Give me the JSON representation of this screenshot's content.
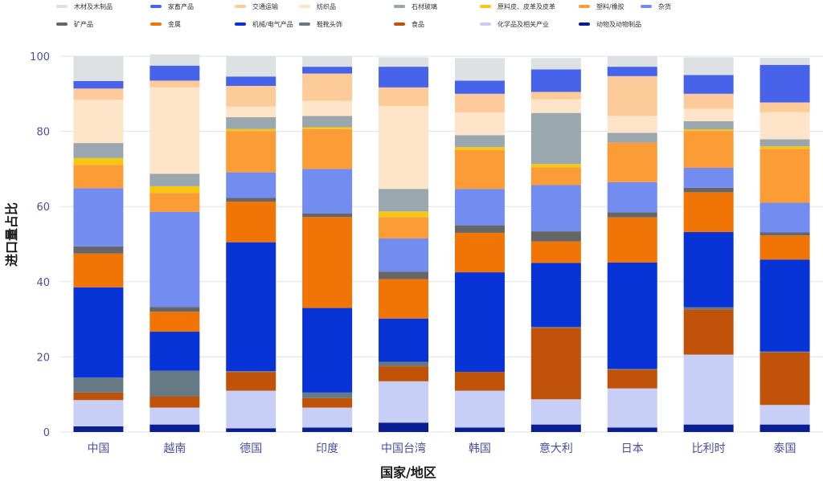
{
  "chart_data": {
    "type": "bar",
    "stacked": true,
    "xlabel": "国家/地区",
    "ylabel": "进口量占比",
    "ylim": [
      0,
      100
    ],
    "yticks": [
      0,
      20,
      40,
      60,
      80,
      100
    ],
    "grid": true,
    "legend_position": "top",
    "categories": [
      "中国",
      "越南",
      "德国",
      "印度",
      "中国台湾",
      "韩国",
      "意大利",
      "日本",
      "比利时",
      "泰国"
    ],
    "series": [
      {
        "name": "动物及动物制品",
        "color": "#0a1f8f",
        "values": [
          1.5,
          2.0,
          1.0,
          1.2,
          2.5,
          1.2,
          2.0,
          1.2,
          2.0,
          2.0
        ]
      },
      {
        "name": "化学品及相关产业",
        "color": "#c8cff7",
        "values": [
          7.0,
          4.5,
          10.0,
          5.3,
          11.0,
          9.8,
          6.7,
          10.4,
          18.6,
          5.2
        ]
      },
      {
        "name": "食品",
        "color": "#c1520a",
        "values": [
          2.0,
          3.0,
          5.0,
          2.5,
          4.0,
          5.0,
          19.0,
          5.0,
          12.0,
          14.0
        ]
      },
      {
        "name": "鞋靴头饰",
        "color": "#667a86",
        "values": [
          4.0,
          6.8,
          0.2,
          1.5,
          1.2,
          0.0,
          0.3,
          0.2,
          0.6,
          0.2
        ]
      },
      {
        "name": "机械/电气产品",
        "color": "#0833d6",
        "values": [
          24.0,
          10.4,
          34.3,
          22.5,
          11.5,
          26.5,
          17.0,
          28.3,
          20.0,
          24.5
        ]
      },
      {
        "name": "金属",
        "color": "#f07406",
        "values": [
          9.0,
          5.3,
          10.8,
          24.2,
          10.5,
          10.5,
          5.7,
          12.0,
          10.6,
          6.4
        ]
      },
      {
        "name": "矿产品",
        "color": "#666666",
        "values": [
          1.9,
          1.3,
          1.0,
          1.0,
          2.0,
          2.0,
          2.7,
          1.4,
          1.2,
          0.8
        ]
      },
      {
        "name": "杂货",
        "color": "#738cef",
        "values": [
          15.5,
          25.3,
          6.8,
          11.8,
          8.8,
          9.7,
          12.3,
          8.0,
          5.3,
          7.9
        ]
      },
      {
        "name": "塑料/橡胶",
        "color": "#fb9c37",
        "values": [
          6.2,
          5.0,
          11.0,
          10.6,
          5.7,
          10.3,
          4.7,
          10.5,
          9.8,
          14.3
        ]
      },
      {
        "name": "原料皮、皮革及皮革",
        "color": "#f7c613",
        "values": [
          1.8,
          1.8,
          0.5,
          0.5,
          1.5,
          0.8,
          0.9,
          0.0,
          0.4,
          0.7
        ]
      },
      {
        "name": "石材玻璃",
        "color": "#9aa7ae",
        "values": [
          4.0,
          3.3,
          3.2,
          3.0,
          6.0,
          3.2,
          13.6,
          2.6,
          2.2,
          1.9
        ]
      },
      {
        "name": "纺织品",
        "color": "#fee5c9",
        "values": [
          11.5,
          23.0,
          2.8,
          4.0,
          22.0,
          6.0,
          3.6,
          4.5,
          3.3,
          7.2
        ]
      },
      {
        "name": "交通运输",
        "color": "#fdcb9a",
        "values": [
          3.0,
          1.8,
          5.5,
          7.3,
          5.0,
          5.0,
          2.0,
          10.6,
          4.0,
          2.6
        ]
      },
      {
        "name": "家畜产品",
        "color": "#4663ea",
        "values": [
          2.0,
          4.0,
          2.5,
          1.8,
          5.5,
          3.5,
          6.0,
          2.5,
          5.0,
          10.0
        ]
      },
      {
        "name": "木材及木制品",
        "color": "#dde1e4",
        "values": [
          6.6,
          3.0,
          5.4,
          2.8,
          2.5,
          6.0,
          3.0,
          2.9,
          4.7,
          1.9
        ]
      }
    ],
    "legend_order": [
      "木材及木制品",
      "家畜产品",
      "交通运输",
      "纺织品",
      "石材玻璃",
      "原料皮、皮革及皮革",
      "塑料/橡胶",
      "杂货",
      "矿产品",
      "金属",
      "机械/电气产品",
      "鞋靴头饰",
      "食品",
      "化学品及相关产业",
      "动物及动物制品"
    ]
  }
}
